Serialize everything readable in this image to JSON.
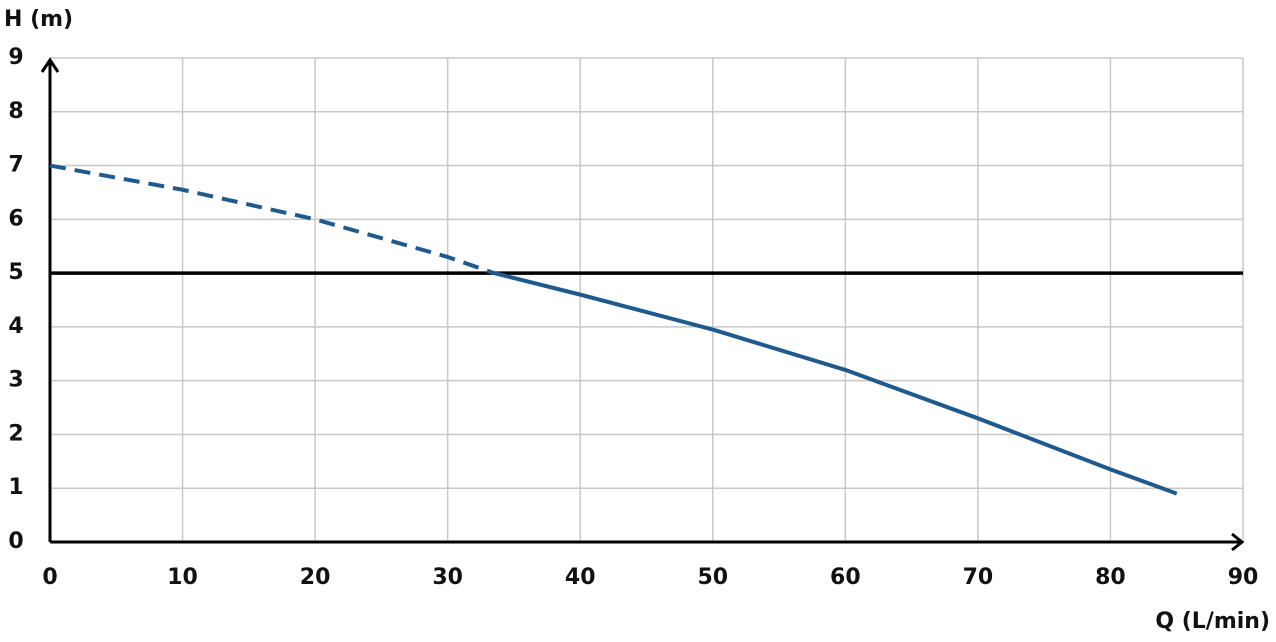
{
  "chart_data": {
    "type": "line",
    "y_label": "H (m)",
    "x_label": "Q (L/min)",
    "x": [
      0,
      10,
      20,
      30,
      33.5,
      40,
      50,
      60,
      70,
      80,
      85
    ],
    "series": [
      {
        "color": "#1f5a8f",
        "dashed": true,
        "values": [
          7,
          6.55,
          6,
          5.3,
          5,
          null,
          null,
          null,
          null,
          null,
          null
        ]
      },
      {
        "color": "#1f5a8f",
        "dashed": false,
        "values": [
          null,
          null,
          null,
          null,
          5,
          4.6,
          3.95,
          3.2,
          2.3,
          1.35,
          0.9
        ]
      }
    ],
    "hline": 5,
    "xlim": [
      0,
      90
    ],
    "xticks": [
      0,
      10,
      20,
      30,
      40,
      50,
      60,
      70,
      80,
      90
    ],
    "ylim": [
      0,
      9
    ],
    "yticks": [
      0,
      1,
      2,
      3,
      4,
      5,
      6,
      7,
      8,
      9
    ],
    "grid": true
  }
}
